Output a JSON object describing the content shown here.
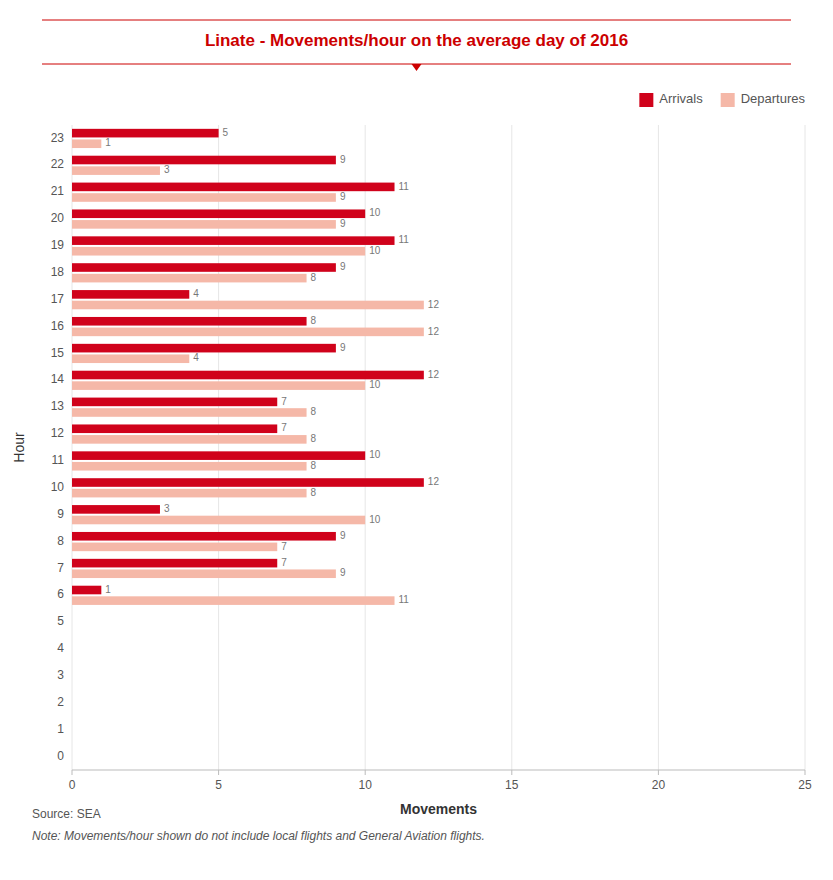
{
  "chart_data": {
    "type": "bar",
    "orientation": "horizontal",
    "title": "Linate - Movements/hour on the average day of 2016",
    "xlabel": "Movements",
    "ylabel": "Hour",
    "categories": [
      "0",
      "1",
      "2",
      "3",
      "4",
      "5",
      "6",
      "7",
      "8",
      "9",
      "10",
      "11",
      "12",
      "13",
      "14",
      "15",
      "16",
      "17",
      "18",
      "19",
      "20",
      "21",
      "22",
      "23"
    ],
    "series": [
      {
        "name": "Arrivals",
        "color": "#D0021B",
        "values": [
          0,
          0,
          0,
          0,
          0,
          0,
          1,
          7,
          9,
          3,
          12,
          10,
          7,
          7,
          12,
          9,
          8,
          4,
          9,
          11,
          10,
          11,
          9,
          5
        ]
      },
      {
        "name": "Departures",
        "color": "#F5B8A8",
        "values": [
          0,
          0,
          0,
          0,
          0,
          0,
          11,
          9,
          7,
          10,
          8,
          8,
          8,
          8,
          10,
          4,
          12,
          12,
          8,
          10,
          9,
          9,
          3,
          1
        ]
      }
    ],
    "xlim": [
      0,
      25
    ],
    "xticks": [
      0,
      5,
      10,
      15,
      20,
      25
    ],
    "grid": true,
    "legend": "upper right",
    "data_labels": true,
    "annotations": [
      "Source: SEA",
      "Note: Movements/hour shown do not include local flights and General Aviation flights."
    ]
  }
}
